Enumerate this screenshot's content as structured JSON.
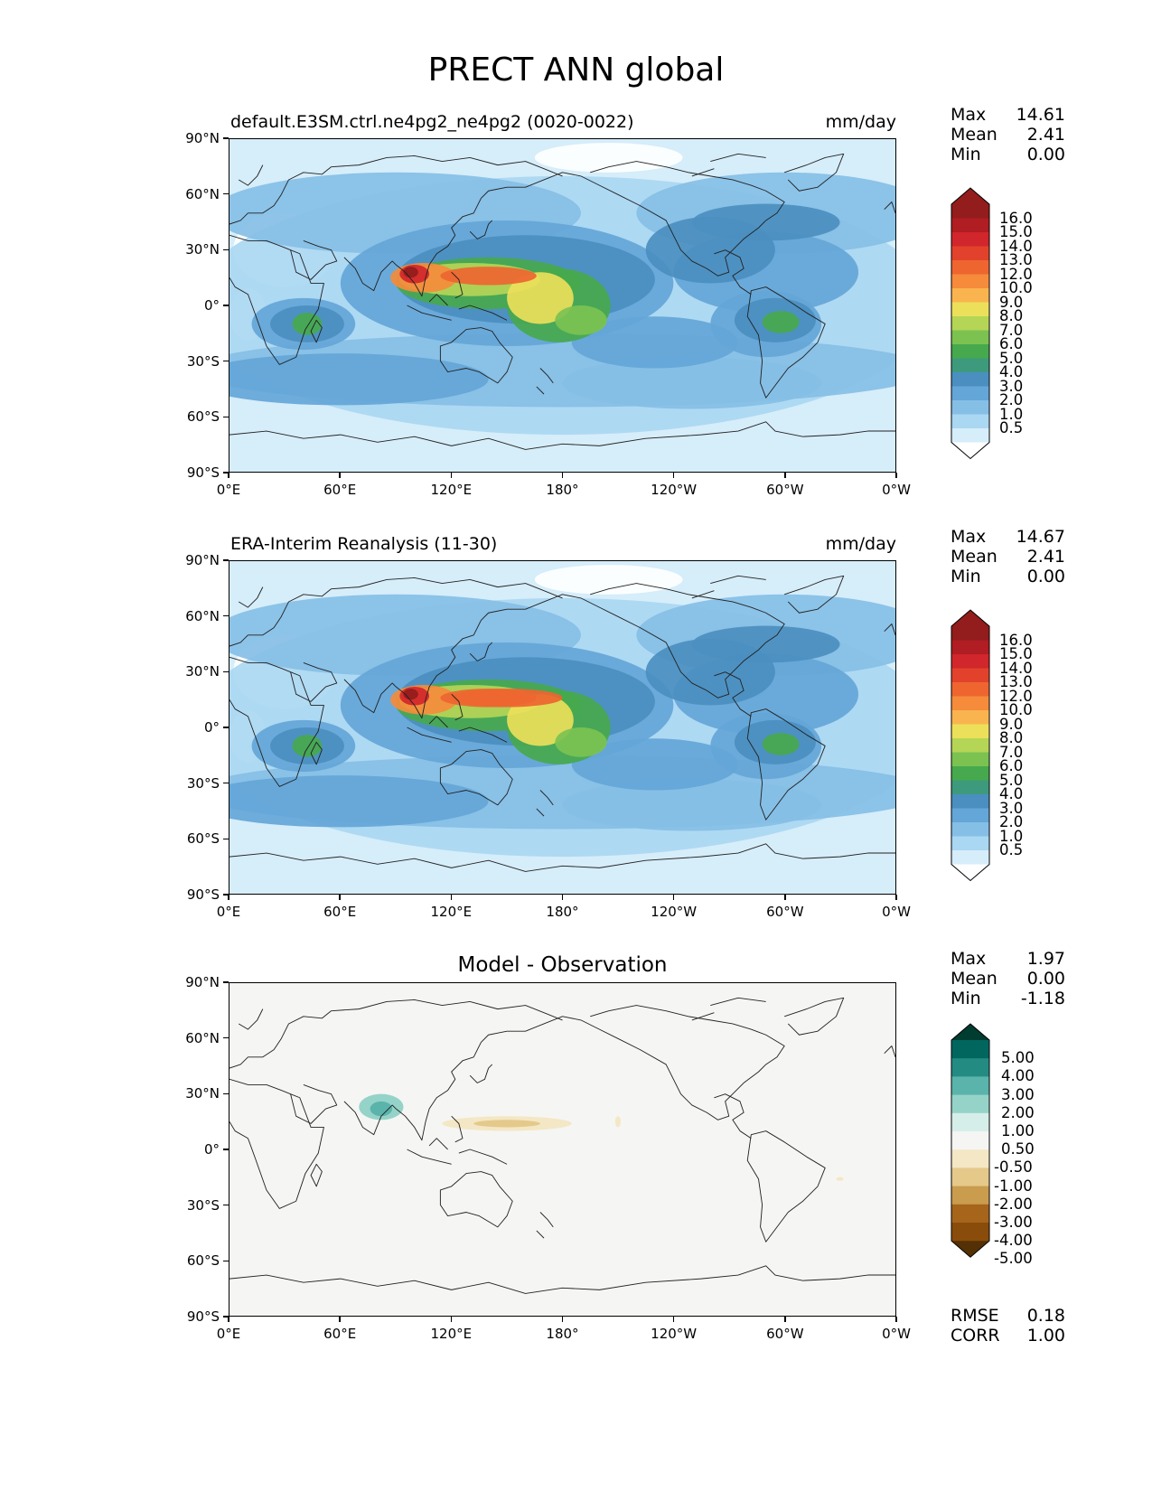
{
  "figure": {
    "title": "PRECT ANN global",
    "x_ticks": [
      "0°E",
      "60°E",
      "120°E",
      "180°",
      "120°W",
      "60°W",
      "0°W"
    ],
    "y_ticks": [
      "90°N",
      "60°N",
      "30°N",
      "0°",
      "30°S",
      "60°S",
      "90°S"
    ]
  },
  "panels": [
    {
      "id": "model",
      "title": "default.E3SM.ctrl.ne4pg2_ne4pg2 (0020-0022)",
      "units": "mm/day",
      "stats": [
        {
          "label": "Max",
          "value": "14.61"
        },
        {
          "label": "Mean",
          "value": "2.41"
        },
        {
          "label": "Min",
          "value": "0.00"
        }
      ],
      "colorbar_labels": [
        "16.0",
        "15.0",
        "14.0",
        "13.0",
        "12.0",
        "10.0",
        "9.0",
        "8.0",
        "7.0",
        "6.0",
        "5.0",
        "4.0",
        "3.0",
        "2.0",
        "1.0",
        "0.5"
      ],
      "colorbar_colors": [
        "#931c1c",
        "#b01d22",
        "#d1262b",
        "#e2422b",
        "#ee6530",
        "#f58b3b",
        "#fab44f",
        "#ece05a",
        "#b5d556",
        "#7cc251",
        "#46a94d",
        "#3d9a7c",
        "#4b8fc0",
        "#64a6d8",
        "#86bfe6",
        "#aad7f2",
        "#d6edfa"
      ],
      "over_color": "#931c1c",
      "under_color": "#ffffff"
    },
    {
      "id": "obs",
      "title": "ERA-Interim Reanalysis (11-30)",
      "units": "mm/day",
      "stats": [
        {
          "label": "Max",
          "value": "14.67"
        },
        {
          "label": "Mean",
          "value": "2.41"
        },
        {
          "label": "Min",
          "value": "0.00"
        }
      ],
      "colorbar_labels": [
        "16.0",
        "15.0",
        "14.0",
        "13.0",
        "12.0",
        "10.0",
        "9.0",
        "8.0",
        "7.0",
        "6.0",
        "5.0",
        "4.0",
        "3.0",
        "2.0",
        "1.0",
        "0.5"
      ],
      "colorbar_colors": [
        "#931c1c",
        "#b01d22",
        "#d1262b",
        "#e2422b",
        "#ee6530",
        "#f58b3b",
        "#fab44f",
        "#ece05a",
        "#b5d556",
        "#7cc251",
        "#46a94d",
        "#3d9a7c",
        "#4b8fc0",
        "#64a6d8",
        "#86bfe6",
        "#aad7f2",
        "#d6edfa"
      ],
      "over_color": "#931c1c",
      "under_color": "#ffffff"
    },
    {
      "id": "diff",
      "title": "Model - Observation",
      "stats": [
        {
          "label": "Max",
          "value": "1.97"
        },
        {
          "label": "Mean",
          "value": "0.00"
        },
        {
          "label": "Min",
          "value": "-1.18"
        }
      ],
      "colorbar_labels": [
        "5.00",
        "4.00",
        "3.00",
        "2.00",
        "1.00",
        "0.50",
        "-0.50",
        "-1.00",
        "-2.00",
        "-3.00",
        "-4.00",
        "-5.00"
      ],
      "colorbar_colors": [
        "#01665e",
        "#238b82",
        "#5ab4ac",
        "#95d3c9",
        "#d6eee9",
        "#f5f5f3",
        "#f4e7c5",
        "#e4c98b",
        "#c99c4e",
        "#a6651b",
        "#8a4c0a"
      ],
      "over_color": "#003c30",
      "under_color": "#543005",
      "footer_stats": [
        {
          "label": "RMSE",
          "value": "0.18"
        },
        {
          "label": "CORR",
          "value": "1.00"
        }
      ]
    }
  ]
}
